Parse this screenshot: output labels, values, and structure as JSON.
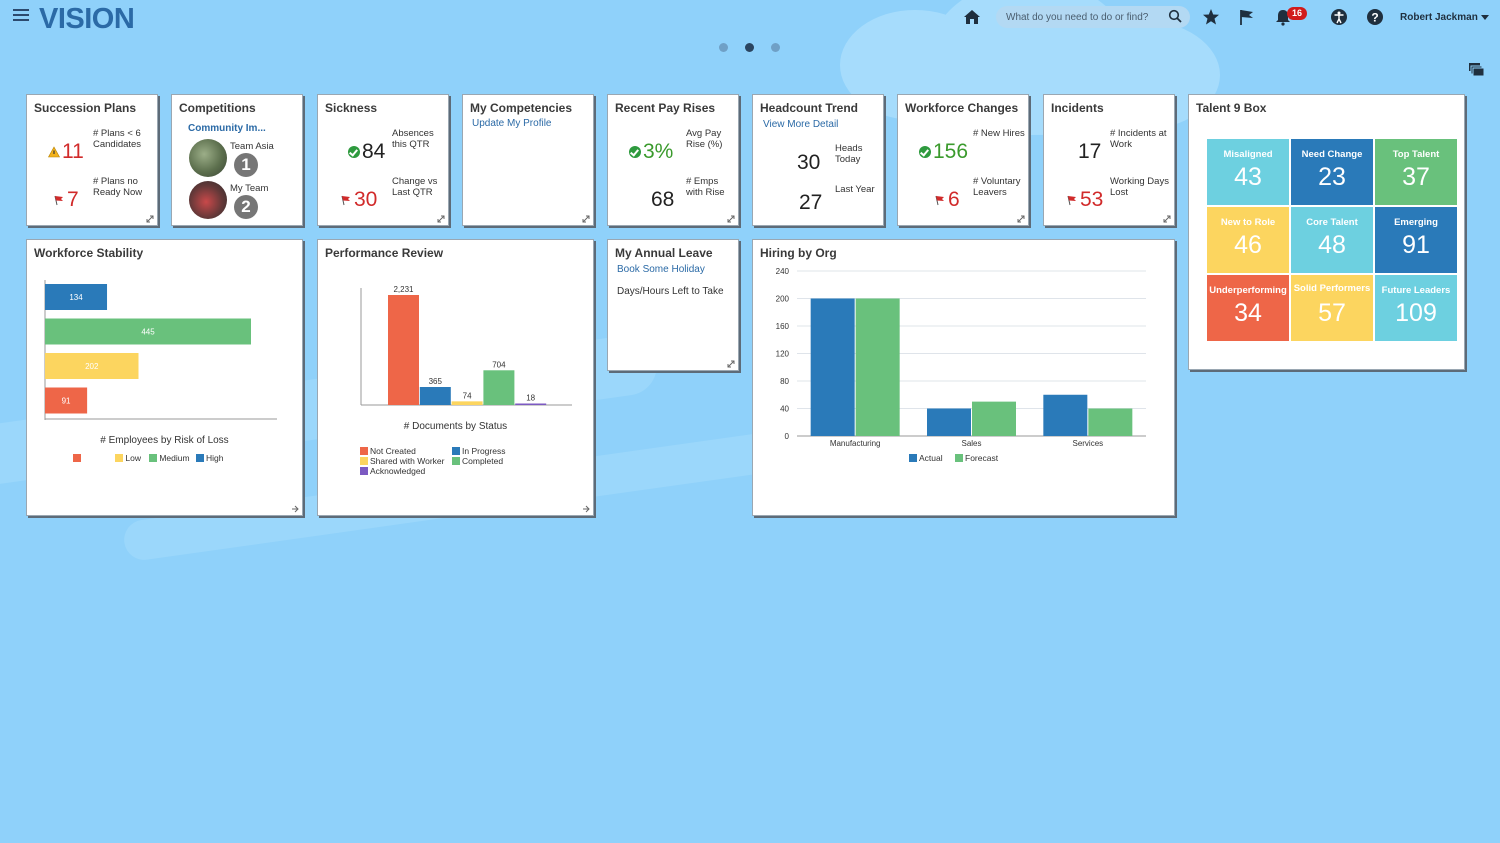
{
  "app": {
    "logo": "VISION",
    "search_placeholder": "What do you need to do or find?",
    "notifications": "16",
    "user": "Robert Jackman"
  },
  "colors": {
    "blue": "#2a7ab9",
    "green": "#69c17c",
    "yellow": "#fcd55f",
    "red": "#ee6648",
    "cyan": "#6dd0e0",
    "purple": "#7c5ac2"
  },
  "succession": {
    "title": "Succession Plans",
    "v1": "11",
    "l1": "# Plans < 6 Candidates",
    "v2": "7",
    "l2": "# Plans no Ready Now"
  },
  "competitions": {
    "title": "Competitions",
    "link": "Community Im...",
    "l1": "Team Asia",
    "c1": "1",
    "l2": "My Team",
    "c2": "2"
  },
  "sickness": {
    "title": "Sickness",
    "v1": "84",
    "l1": "Absences this QTR",
    "v2": "30",
    "l2": "Change vs Last QTR"
  },
  "competencies": {
    "title": "My Competencies",
    "link": "Update My Profile"
  },
  "payrises": {
    "title": "Recent Pay Rises",
    "v1": "3%",
    "l1": "Avg Pay Rise (%)",
    "v2": "68",
    "l2": "# Emps with Rise"
  },
  "headcount": {
    "title": "Headcount Trend",
    "link": "View More Detail",
    "v1": "30",
    "l1": "Heads Today",
    "v2": "27",
    "l2": "Last Year"
  },
  "workforce_changes": {
    "title": "Workforce Changes",
    "v1": "156",
    "l1": "# New Hires",
    "v2": "6",
    "l2": "# Voluntary Leavers"
  },
  "incidents": {
    "title": "Incidents",
    "v1": "17",
    "l1": "# Incidents at Work",
    "v2": "53",
    "l2": "Working Days Lost"
  },
  "talent": {
    "title": "Talent 9 Box",
    "cells": [
      {
        "label": "Misaligned",
        "value": "43",
        "color": "#6dd0e0"
      },
      {
        "label": "Need Change",
        "value": "23",
        "color": "#2a7ab9"
      },
      {
        "label": "Top Talent",
        "value": "37",
        "color": "#69c17c"
      },
      {
        "label": "New to Role",
        "value": "46",
        "color": "#fcd55f"
      },
      {
        "label": "Core Talent",
        "value": "48",
        "color": "#6dd0e0"
      },
      {
        "label": "Emerging",
        "value": "91",
        "color": "#2a7ab9"
      },
      {
        "label": "Underperforming",
        "value": "34",
        "color": "#ee6648"
      },
      {
        "label": "Solid Performers",
        "value": "57",
        "color": "#fcd55f"
      },
      {
        "label": "Future Leaders",
        "value": "109",
        "color": "#6dd0e0"
      }
    ]
  },
  "stability": {
    "title": "Workforce Stability",
    "xlabel": "# Employees by Risk of Loss",
    "legend": [
      "",
      "Low",
      "Medium",
      "High"
    ]
  },
  "performance": {
    "title": "Performance Review",
    "xlabel": "# Documents by Status",
    "legend": [
      "Not Created",
      "In Progress",
      "Shared with Worker",
      "Completed",
      "Acknowledged"
    ]
  },
  "leave": {
    "title": "My Annual Leave",
    "link": "Book Some Holiday",
    "text": "Days/Hours Left to Take"
  },
  "hiring": {
    "title": "Hiring by Org",
    "legend": [
      "Actual",
      "Forecast"
    ]
  },
  "chart_data": [
    {
      "type": "bar",
      "orientation": "horizontal",
      "categories": [
        "High",
        "Medium",
        "Low",
        ""
      ],
      "values": [
        134,
        445,
        202,
        91
      ],
      "colors": [
        "#2a7ab9",
        "#69c17c",
        "#fcd55f",
        "#ee6648"
      ],
      "xlabel": "# Employees by Risk of Loss",
      "xlim": [
        0,
        500
      ]
    },
    {
      "type": "bar",
      "categories": [
        "Not Created",
        "In Progress",
        "Shared with Worker",
        "Completed",
        "Acknowledged"
      ],
      "values": [
        2231,
        365,
        74,
        704,
        18
      ],
      "value_labels": [
        "2,231",
        "365",
        "74",
        "704",
        "18"
      ],
      "colors": [
        "#ee6648",
        "#2a7ab9",
        "#fcd55f",
        "#69c17c",
        "#7c5ac2"
      ],
      "xlabel": "# Documents by Status",
      "ylim": [
        0,
        2500
      ]
    },
    {
      "type": "bar",
      "categories": [
        "Manufacturing",
        "Sales",
        "Services"
      ],
      "series": [
        {
          "name": "Actual",
          "values": [
            200,
            40,
            60
          ],
          "color": "#2a7ab9"
        },
        {
          "name": "Forecast",
          "values": [
            200,
            50,
            40
          ],
          "color": "#69c17c"
        }
      ],
      "ylim": [
        0,
        240
      ],
      "yticks": [
        0,
        40,
        80,
        120,
        160,
        200,
        240
      ],
      "grid": true,
      "legend": "bottom"
    }
  ]
}
